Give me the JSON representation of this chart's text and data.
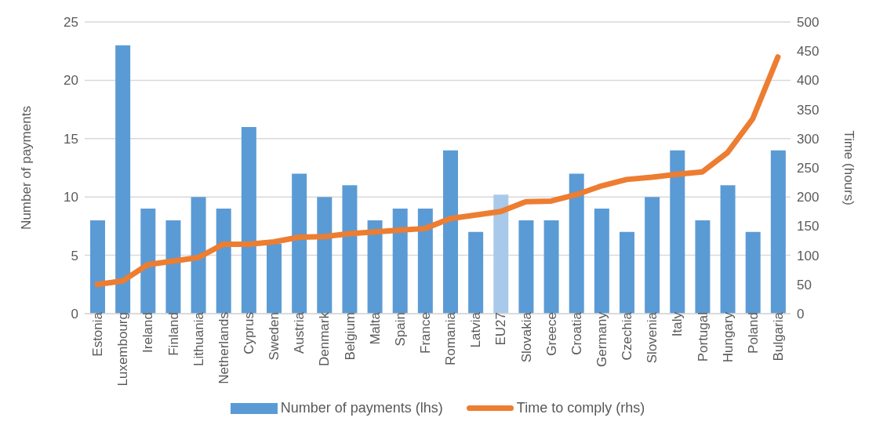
{
  "chart_data": {
    "type": "bar",
    "xlabel": null,
    "ylabel": "Number of payments",
    "y2label": "Time (hours)",
    "categories": [
      "Estonia",
      "Luxembourg",
      "Ireland",
      "Finland",
      "Lithuania",
      "Netherlands",
      "Cyprus",
      "Sweden",
      "Austria",
      "Denmark",
      "Belgium",
      "Malta",
      "Spain",
      "France",
      "Romania",
      "Latvia",
      "EU27",
      "Slovakia",
      "Greece",
      "Croatia",
      "Germany",
      "Czechia",
      "Slovenia",
      "Italy",
      "Portugal",
      "Hungary",
      "Poland",
      "Bulgaria"
    ],
    "series": [
      {
        "name": "Number of payments (lhs)",
        "color": "#5b9bd5",
        "colors": [
          "#5b9bd5",
          "#5b9bd5",
          "#5b9bd5",
          "#5b9bd5",
          "#5b9bd5",
          "#5b9bd5",
          "#5b9bd5",
          "#5b9bd5",
          "#5b9bd5",
          "#5b9bd5",
          "#5b9bd5",
          "#5b9bd5",
          "#5b9bd5",
          "#5b9bd5",
          "#5b9bd5",
          "#5b9bd5",
          "#a9c9ea",
          "#5b9bd5",
          "#5b9bd5",
          "#5b9bd5",
          "#5b9bd5",
          "#5b9bd5",
          "#5b9bd5",
          "#5b9bd5",
          "#5b9bd5",
          "#5b9bd5",
          "#5b9bd5",
          "#5b9bd5"
        ],
        "values": [
          8,
          23,
          9,
          8,
          10,
          9,
          16,
          6,
          12,
          10,
          11,
          8,
          9,
          9,
          14,
          7,
          10.2,
          8,
          8,
          12,
          9,
          7,
          10,
          14,
          8,
          11,
          7,
          14
        ]
      },
      {
        "name": "Time to comply (rhs)",
        "type": "line",
        "axis": "y2",
        "color": "#ed7d31",
        "values": [
          50,
          56,
          84,
          90,
          96,
          119,
          119,
          123,
          131,
          132,
          137,
          140,
          143,
          146,
          163,
          169,
          175,
          192,
          193,
          204,
          219,
          230,
          234,
          239,
          243,
          276,
          334,
          440
        ]
      }
    ],
    "ylim": [
      0,
      25
    ],
    "yticks": [
      0,
      5,
      10,
      15,
      20,
      25
    ],
    "y2lim": [
      0,
      500
    ],
    "y2ticks": [
      0,
      50,
      100,
      150,
      200,
      250,
      300,
      350,
      400,
      450,
      500
    ],
    "grid": "y",
    "legend": "bottom",
    "marker": "none",
    "line_style": "solid"
  }
}
